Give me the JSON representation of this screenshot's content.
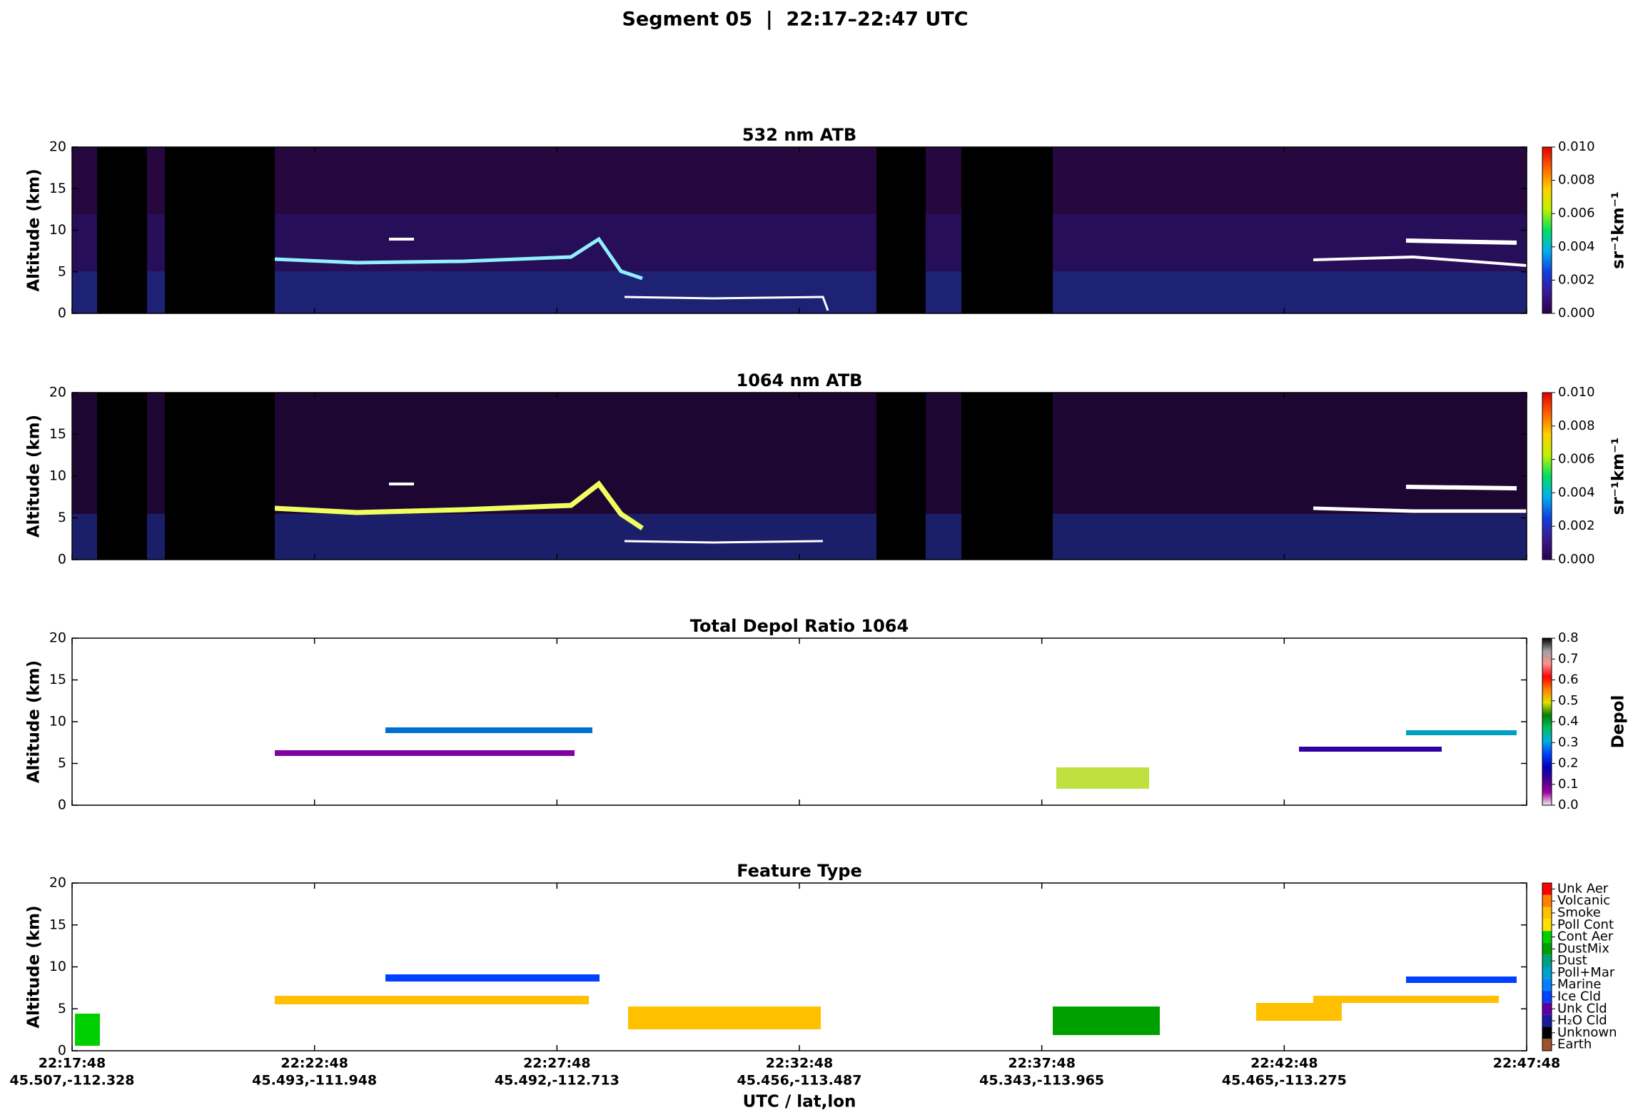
{
  "title": "Segment 05  |  22:17–22:47 UTC",
  "xlabel": "UTC / lat,lon",
  "xlim": [
    "22:17:48",
    "22:47:48"
  ],
  "xticks": [
    "22:17:48",
    "22:22:48",
    "22:27:48",
    "22:32:48",
    "22:37:48",
    "22:42:48",
    "22:47:48"
  ],
  "xtick_sublabels": [
    "45.507,-112.328",
    "45.493,-111.948",
    "45.492,-112.713",
    "45.456,-113.487",
    "45.343,-113.965",
    "45.465,-113.275",
    null
  ],
  "chart_data": [
    {
      "type": "curtain",
      "title": "532 nm ATB",
      "ylabel": "Altitude (km)",
      "ylim": [
        0,
        20
      ],
      "yticks": [
        0,
        5,
        10,
        15,
        20
      ],
      "colorbar": {
        "type": "continuous",
        "label": "sr⁻¹km⁻¹",
        "lim": [
          0,
          0.01
        ],
        "ticks": [
          {
            "value": 0,
            "label": "0.000"
          },
          {
            "value": 0.002,
            "label": "0.002"
          },
          {
            "value": 0.004,
            "label": "0.004"
          },
          {
            "value": 0.006,
            "label": "0.006"
          },
          {
            "value": 0.008,
            "label": "0.008"
          },
          {
            "value": 0.01,
            "label": "0.010"
          }
        ],
        "colors": [
          "#2a0050",
          "#3a1890",
          "#1040e0",
          "#00b0f0",
          "#00e060",
          "#c0f000",
          "#ffd000",
          "#ff6000",
          "#e00000"
        ]
      }
    },
    {
      "type": "curtain",
      "title": "1064 nm ATB",
      "ylabel": "Altitude (km)",
      "ylim": [
        0,
        20
      ],
      "yticks": [
        0,
        5,
        10,
        15,
        20
      ],
      "colorbar": {
        "type": "continuous",
        "label": "sr⁻¹km⁻¹",
        "lim": [
          0,
          0.01
        ],
        "ticks": [
          {
            "value": 0,
            "label": "0.000"
          },
          {
            "value": 0.002,
            "label": "0.002"
          },
          {
            "value": 0.004,
            "label": "0.004"
          },
          {
            "value": 0.006,
            "label": "0.006"
          },
          {
            "value": 0.008,
            "label": "0.008"
          },
          {
            "value": 0.01,
            "label": "0.010"
          }
        ],
        "colors": [
          "#2a0050",
          "#3a1890",
          "#1040e0",
          "#00b0f0",
          "#00e060",
          "#c0f000",
          "#ffd000",
          "#ff6000",
          "#e00000"
        ]
      }
    },
    {
      "type": "depol",
      "title": "Total Depol Ratio 1064",
      "ylabel": "Altitude (km)",
      "ylim": [
        0,
        20
      ],
      "yticks": [
        0,
        5,
        10,
        15,
        20
      ],
      "colorbar": {
        "type": "continuous",
        "label": "Depol",
        "lim": [
          0,
          0.8
        ],
        "ticks": [
          {
            "value": 0,
            "label": "0.0"
          },
          {
            "value": 0.1,
            "label": "0.1"
          },
          {
            "value": 0.2,
            "label": "0.2"
          },
          {
            "value": 0.3,
            "label": "0.3"
          },
          {
            "value": 0.4,
            "label": "0.4"
          },
          {
            "value": 0.5,
            "label": "0.5"
          },
          {
            "value": 0.6,
            "label": "0.6"
          },
          {
            "value": 0.7,
            "label": "0.7"
          },
          {
            "value": 0.8,
            "label": "0.8"
          }
        ],
        "colors": [
          "#f0f0f0",
          "#a000a0",
          "#400090",
          "#0000c0",
          "#0040ff",
          "#00b0e0",
          "#00c060",
          "#008000",
          "#e0e000",
          "#ff8000",
          "#ff0000",
          "#ff9090",
          "#a0a0a0",
          "#000000"
        ]
      }
    },
    {
      "type": "feature",
      "title": "Feature Type",
      "ylabel": "Altitude (km)",
      "ylim": [
        0,
        20
      ],
      "yticks": [
        0,
        5,
        10,
        15,
        20
      ],
      "colorbar": {
        "type": "categorical",
        "categories": [
          "Earth",
          "Unknown",
          "H₂O Cld",
          "Unk Cld",
          "Ice Cld",
          "Marine",
          "Poll+Mar",
          "Dust",
          "DustMix",
          "Cont Aer",
          "Poll Cont",
          "Smoke",
          "Volcanic",
          "Unk Aer"
        ],
        "colors": [
          "#a0522d",
          "#000000",
          "#1a1aa0",
          "#6000a0",
          "#0040ff",
          "#0080ff",
          "#00a0d0",
          "#00a080",
          "#00a000",
          "#00d000",
          "#ffe000",
          "#ffc000",
          "#ff8000",
          "#ff0000"
        ]
      }
    }
  ]
}
